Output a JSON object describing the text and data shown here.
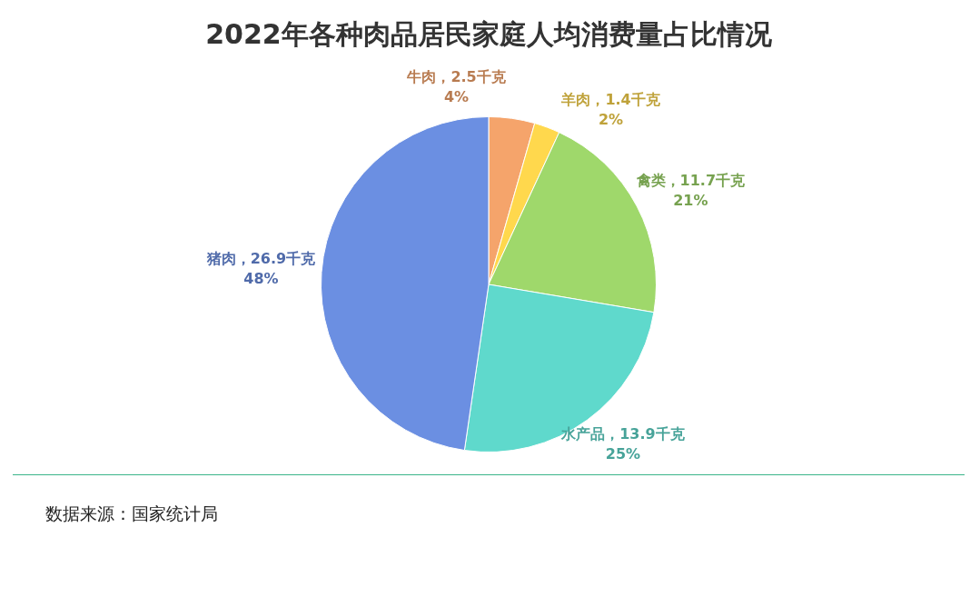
{
  "chart_data": {
    "type": "pie",
    "title": "2022年各种肉品居民家庭人均消费量占比情况",
    "categories": [
      "牛肉",
      "羊肉",
      "禽类",
      "水产品",
      "猪肉"
    ],
    "values": [
      2.5,
      1.4,
      11.7,
      13.9,
      26.9
    ],
    "value_labels": [
      "2.5千克\n4%",
      "1.4千克\n2%",
      "11.7千克\n21%",
      "13.9千克\n25%",
      "26.9千克\n48%"
    ],
    "colors": [
      "#f5a46b",
      "#ffd84d",
      "#9fd86b",
      "#5fd9cc",
      "#6b8fe2"
    ],
    "legend": false,
    "annotations": [
      "数据来源：国家统计局"
    ]
  }
}
